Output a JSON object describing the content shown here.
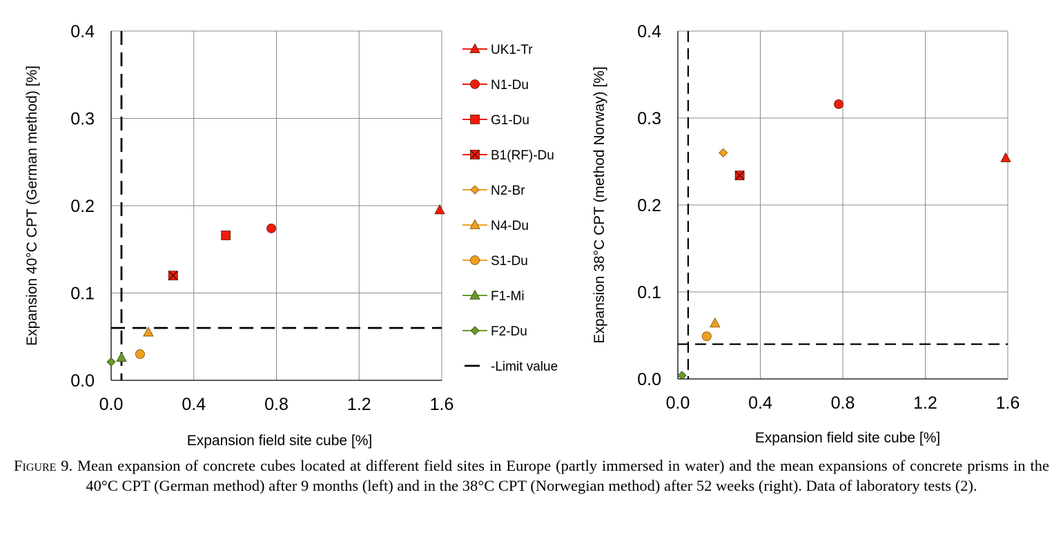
{
  "chart_data": [
    {
      "type": "scatter",
      "xlabel": "Expansion field site cube [%]",
      "ylabel": "Expansion 40°C CPT (German method) [%]",
      "xlim": [
        0,
        1.6
      ],
      "ylim": [
        0,
        0.4
      ],
      "xticks": [
        "0.0",
        "0.4",
        "0.8",
        "1.2",
        "1.6"
      ],
      "yticks": [
        "0.0",
        "0.1",
        "0.2",
        "0.3",
        "0.4"
      ],
      "grid": true,
      "legend": "right",
      "limit_lines": {
        "x": 0.05,
        "y": 0.06
      },
      "series": [
        {
          "name": "UK1-Tr",
          "marker": "triangle",
          "color": "#ee1c0c",
          "x": [
            1.59
          ],
          "y": [
            0.195
          ]
        },
        {
          "name": "N1-Du",
          "marker": "circle",
          "color": "#ee1c0c",
          "x": [
            0.775
          ],
          "y": [
            0.174
          ]
        },
        {
          "name": "G1-Du",
          "marker": "square",
          "color": "#ee1c0c",
          "x": [
            0.555
          ],
          "y": [
            0.166
          ]
        },
        {
          "name": "B1(RF)-Du",
          "marker": "square-x",
          "color": "#ee1c0c",
          "x": [
            0.3
          ],
          "y": [
            0.12
          ]
        },
        {
          "name": "N2-Br",
          "marker": "diamond",
          "color": "#f0a020",
          "x": [],
          "y": []
        },
        {
          "name": "N4-Du",
          "marker": "triangle",
          "color": "#f0a020",
          "x": [
            0.18
          ],
          "y": [
            0.055
          ]
        },
        {
          "name": "S1-Du",
          "marker": "circle",
          "color": "#f0a020",
          "x": [
            0.14
          ],
          "y": [
            0.03
          ]
        },
        {
          "name": "F1-Mi",
          "marker": "triangle",
          "color": "#6a9a2a",
          "x": [
            0.05
          ],
          "y": [
            0.026
          ]
        },
        {
          "name": "F2-Du",
          "marker": "diamond",
          "color": "#6a9a2a",
          "x": [
            0.0
          ],
          "y": [
            0.021
          ]
        },
        {
          "name": "-Limit value",
          "marker": "dash",
          "color": "#000000",
          "x": [],
          "y": []
        }
      ]
    },
    {
      "type": "scatter",
      "xlabel": "Expansion field site cube [%]",
      "ylabel": "Expansion 38°C CPT (method Norway) [%]",
      "xlim": [
        0,
        1.6
      ],
      "ylim": [
        0,
        0.4
      ],
      "xticks": [
        "0.0",
        "0.4",
        "0.8",
        "1.2",
        "1.6"
      ],
      "yticks": [
        "0.0",
        "0.1",
        "0.2",
        "0.3",
        "0.4"
      ],
      "grid": true,
      "legend": "none",
      "limit_lines": {
        "x": 0.05,
        "y": 0.04
      },
      "series": [
        {
          "name": "UK1-Tr",
          "marker": "triangle",
          "color": "#ee1c0c",
          "x": [
            1.59
          ],
          "y": [
            0.254
          ]
        },
        {
          "name": "N1-Du",
          "marker": "circle",
          "color": "#ee1c0c",
          "x": [
            0.78
          ],
          "y": [
            0.316
          ]
        },
        {
          "name": "B1(RF)-Du",
          "marker": "square-x",
          "color": "#ee1c0c",
          "x": [
            0.3
          ],
          "y": [
            0.234
          ]
        },
        {
          "name": "N2-Br",
          "marker": "diamond",
          "color": "#f0a020",
          "x": [
            0.22
          ],
          "y": [
            0.26
          ]
        },
        {
          "name": "N4-Du",
          "marker": "triangle",
          "color": "#f0a020",
          "x": [
            0.18
          ],
          "y": [
            0.064
          ]
        },
        {
          "name": "S1-Du",
          "marker": "circle",
          "color": "#f0a020",
          "x": [
            0.14
          ],
          "y": [
            0.049
          ]
        },
        {
          "name": "F2-Du",
          "marker": "diamond",
          "color": "#6a9a2a",
          "x": [
            0.02
          ],
          "y": [
            0.004
          ]
        }
      ]
    }
  ],
  "caption": {
    "lead": "Figure 9.",
    "text": "Mean expansion of concrete cubes located at different field sites in Europe (partly immersed in water) and the mean expansions of concrete prisms in the 40°C CPT (German method) after 9 months (left) and in the 38°C CPT (Norwegian method) after 52 weeks (right). Data of laboratory tests (2)."
  }
}
